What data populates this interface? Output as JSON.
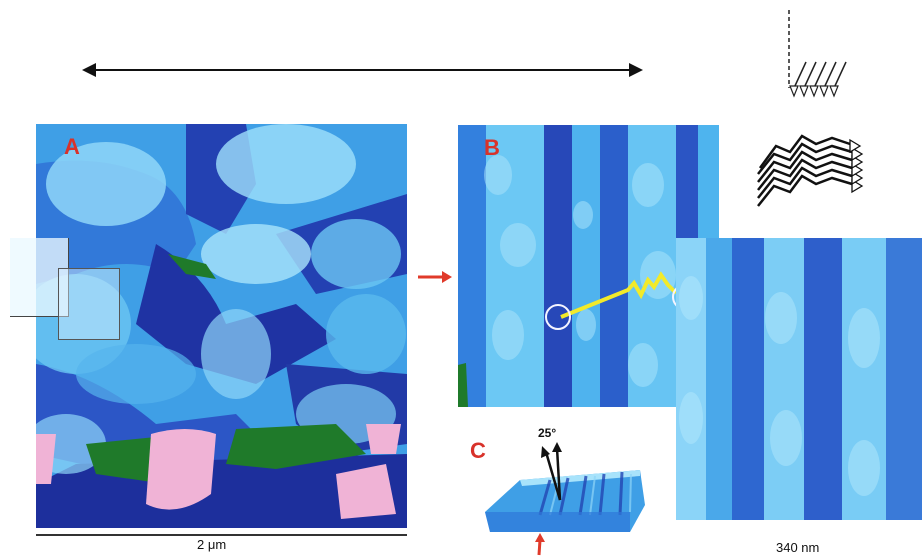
{
  "panels": {
    "a": {
      "label": "A"
    },
    "b": {
      "label": "B"
    },
    "c": {
      "label": "C",
      "angle_label": "25°"
    }
  },
  "scale_bars": {
    "a": "2 μm",
    "zoom": "340 nm"
  },
  "colors": {
    "afm_dark": "#1d2f9c",
    "afm_mid": "#2c6ad3",
    "afm_light": "#48b3ee",
    "afm_pale": "#9fe0fb",
    "afm_green": "#1f7a2a",
    "afm_pink": "#f0b3d6",
    "arrow_red": "#e03a2a",
    "highlight_yellow": "#f2ea2a"
  }
}
